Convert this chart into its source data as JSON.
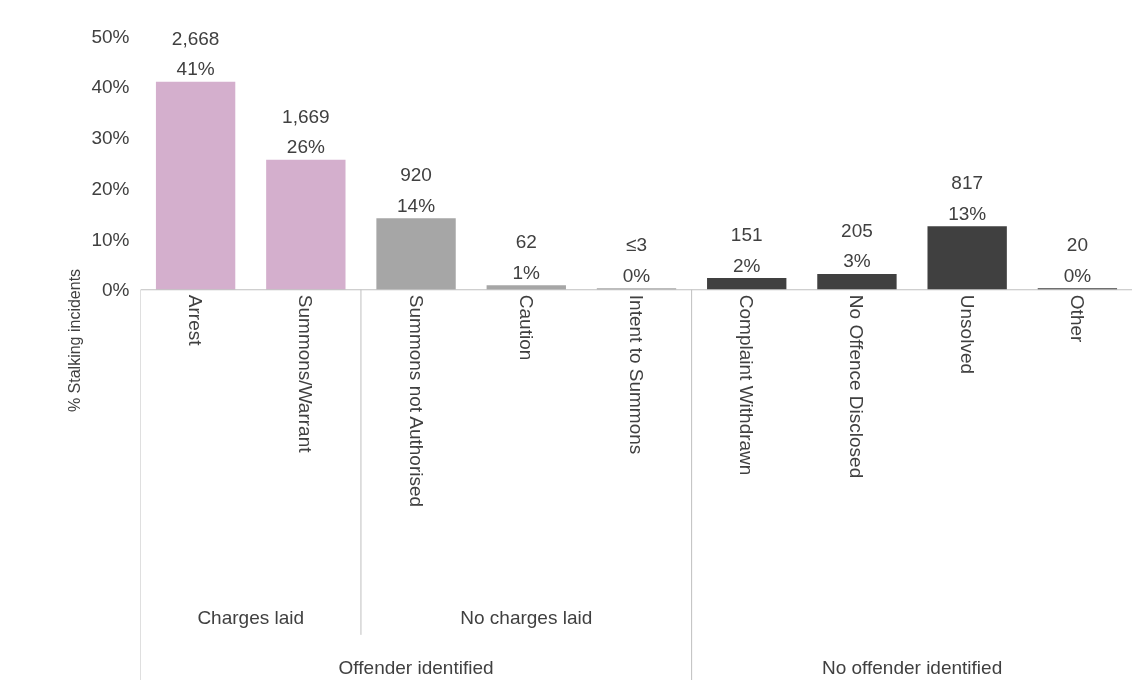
{
  "chart_data": {
    "type": "bar",
    "ylabel": "% Stalking incidents",
    "categories": [
      "Arrest",
      "Summons/Warrant",
      "Summons not Authorised",
      "Caution",
      "Intent to Summons",
      "Complaint Withdrawn",
      "No Offence Disclosed",
      "Unsolved",
      "Other"
    ],
    "values": [
      41,
      25.6,
      14.1,
      0.9,
      0.3,
      2.3,
      3.1,
      12.5,
      0.3
    ],
    "colors": [
      "#d4afcd",
      "#d4afcd",
      "#a6a6a6",
      "#a6a6a6",
      "#a6a6a6",
      "#404040",
      "#404040",
      "#404040",
      "#404040"
    ],
    "value_labels": [
      "2,668\n41%",
      "1,669\n26%",
      "920\n14%",
      "62\n1%",
      "≤3\n0%",
      "151\n2%",
      "205\n3%",
      "817\n13%",
      "20\n0%"
    ],
    "ylim": [
      0,
      50
    ],
    "yticks": [
      {
        "value": 0,
        "label": "0%"
      },
      {
        "value": 10,
        "label": "10%"
      },
      {
        "value": 20,
        "label": "20%"
      },
      {
        "value": 30,
        "label": "30%"
      },
      {
        "value": 40,
        "label": "40%"
      },
      {
        "value": 50,
        "label": "50%"
      }
    ],
    "annotations": [
      "Charges laid",
      "No charges laid",
      "Offender identified",
      "No offender identified"
    ],
    "grid": false
  }
}
